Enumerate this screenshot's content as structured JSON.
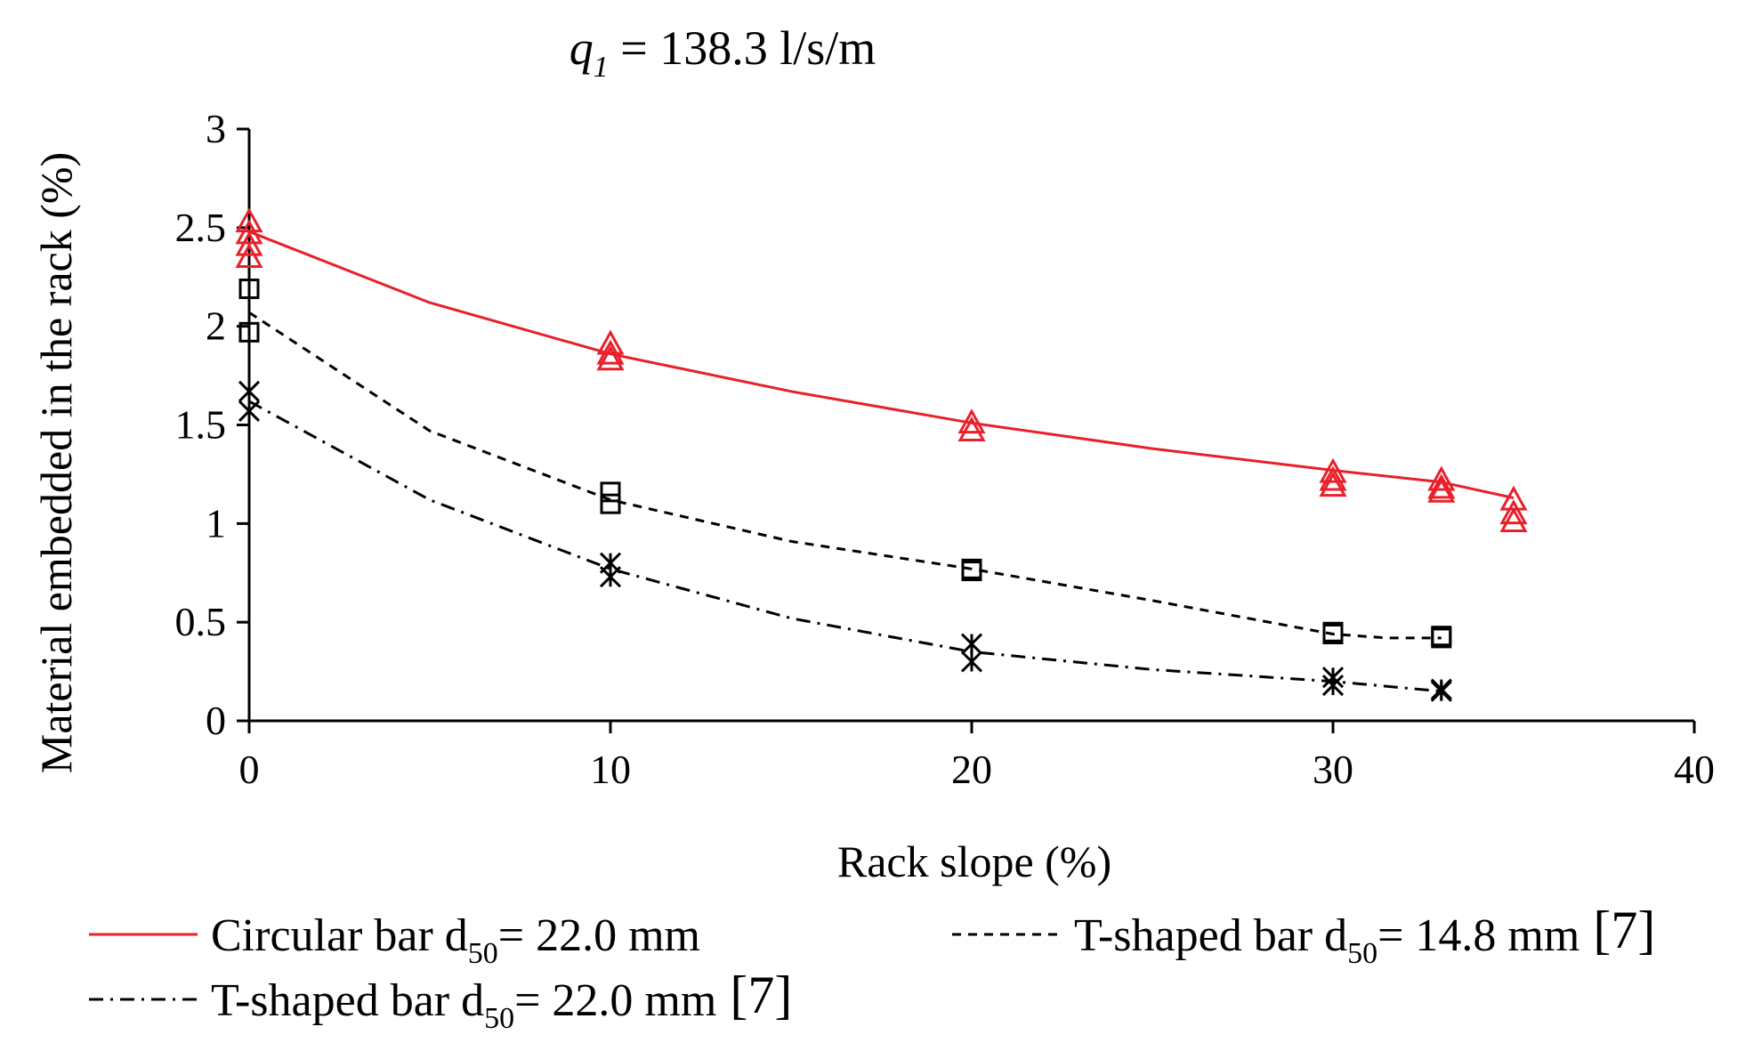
{
  "chart_data": {
    "type": "scatter",
    "title": {
      "var": "q",
      "sub": "1",
      "rest": " = 138.3  l/s/m"
    },
    "xlabel": "Rack slope  (%)",
    "ylabel": "Material  embedded  in  the  rack  (%)",
    "xlim": [
      0,
      40
    ],
    "ylim": [
      0,
      3
    ],
    "xticks": [
      "0",
      "10",
      "20",
      "30",
      "40"
    ],
    "yticks": [
      "0",
      "0.5",
      "1",
      "1.5",
      "2",
      "2.5",
      "3"
    ],
    "series": [
      {
        "name": "Circular bar",
        "d50_label": "d",
        "d50_sub": "50",
        "d50_value": "=  22.0 mm",
        "ref": "",
        "color": "#e8202a",
        "marker": "triangle",
        "line_style": "solid",
        "points": [
          {
            "x": 0,
            "y": 2.53
          },
          {
            "x": 0,
            "y": 2.47
          },
          {
            "x": 0,
            "y": 2.41
          },
          {
            "x": 0,
            "y": 2.35
          },
          {
            "x": 10,
            "y": 1.91
          },
          {
            "x": 10,
            "y": 1.86
          },
          {
            "x": 10,
            "y": 1.83
          },
          {
            "x": 20,
            "y": 1.51
          },
          {
            "x": 20,
            "y": 1.47
          },
          {
            "x": 30,
            "y": 1.26
          },
          {
            "x": 30,
            "y": 1.22
          },
          {
            "x": 30,
            "y": 1.19
          },
          {
            "x": 33,
            "y": 1.22
          },
          {
            "x": 33,
            "y": 1.18
          },
          {
            "x": 33,
            "y": 1.16
          },
          {
            "x": 35,
            "y": 1.12
          },
          {
            "x": 35,
            "y": 1.05
          },
          {
            "x": 35,
            "y": 1.01
          }
        ],
        "trend": [
          {
            "x": 0,
            "y": 2.48
          },
          {
            "x": 5,
            "y": 2.12
          },
          {
            "x": 10,
            "y": 1.86
          },
          {
            "x": 15,
            "y": 1.67
          },
          {
            "x": 20,
            "y": 1.51
          },
          {
            "x": 25,
            "y": 1.38
          },
          {
            "x": 30,
            "y": 1.27
          },
          {
            "x": 33,
            "y": 1.21
          },
          {
            "x": 35,
            "y": 1.13
          }
        ]
      },
      {
        "name": "T-shaped bar",
        "d50_label": "d",
        "d50_sub": "50",
        "d50_value": "=  14.8 mm",
        "ref": "[7]",
        "color": "#000000",
        "marker": "square",
        "line_style": "dashed",
        "points": [
          {
            "x": 0,
            "y": 2.19
          },
          {
            "x": 0,
            "y": 1.97
          },
          {
            "x": 10,
            "y": 1.16
          },
          {
            "x": 10,
            "y": 1.1
          },
          {
            "x": 20,
            "y": 0.77
          },
          {
            "x": 20,
            "y": 0.76
          },
          {
            "x": 30,
            "y": 0.45
          },
          {
            "x": 30,
            "y": 0.44
          },
          {
            "x": 33,
            "y": 0.43
          },
          {
            "x": 33,
            "y": 0.42
          }
        ],
        "trend": [
          {
            "x": 0,
            "y": 2.07
          },
          {
            "x": 5,
            "y": 1.47
          },
          {
            "x": 10,
            "y": 1.12
          },
          {
            "x": 15,
            "y": 0.91
          },
          {
            "x": 20,
            "y": 0.77
          },
          {
            "x": 25,
            "y": 0.61
          },
          {
            "x": 30,
            "y": 0.44
          },
          {
            "x": 31.5,
            "y": 0.42
          },
          {
            "x": 33,
            "y": 0.42
          }
        ]
      },
      {
        "name": "T-shaped bar",
        "d50_label": "d",
        "d50_sub": "50",
        "d50_value": "=  22.0 mm",
        "ref": "[7]",
        "color": "#000000",
        "marker": "asterisk",
        "line_style": "dashdot",
        "points": [
          {
            "x": 0,
            "y": 1.67
          },
          {
            "x": 0,
            "y": 1.57
          },
          {
            "x": 10,
            "y": 0.8
          },
          {
            "x": 10,
            "y": 0.73
          },
          {
            "x": 20,
            "y": 0.39
          },
          {
            "x": 20,
            "y": 0.3
          },
          {
            "x": 30,
            "y": 0.22
          },
          {
            "x": 30,
            "y": 0.18
          },
          {
            "x": 33,
            "y": 0.16
          },
          {
            "x": 33,
            "y": 0.15
          }
        ],
        "trend": [
          {
            "x": 0,
            "y": 1.62
          },
          {
            "x": 5,
            "y": 1.12
          },
          {
            "x": 10,
            "y": 0.77
          },
          {
            "x": 15,
            "y": 0.52
          },
          {
            "x": 20,
            "y": 0.35
          },
          {
            "x": 25,
            "y": 0.26
          },
          {
            "x": 30,
            "y": 0.2
          },
          {
            "x": 33,
            "y": 0.15
          }
        ]
      }
    ]
  }
}
